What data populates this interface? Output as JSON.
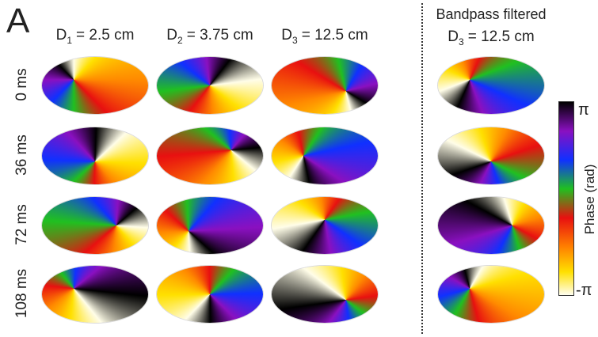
{
  "panel_label": "A",
  "bandpass_header": "Bandpass filtered",
  "columns": [
    {
      "symbol": "D",
      "subscript": "1",
      "value": "= 2.5 cm"
    },
    {
      "symbol": "D",
      "subscript": "2",
      "value": "= 3.75 cm"
    },
    {
      "symbol": "D",
      "subscript": "3",
      "value": "= 12.5 cm"
    },
    {
      "symbol": "D",
      "subscript": "3",
      "value": "= 12.5 cm"
    }
  ],
  "rows": [
    "0 ms",
    "36 ms",
    "72 ms",
    "108 ms"
  ],
  "colorbar": {
    "label": "Phase (rad)",
    "max_label": "π",
    "min_label": "-π"
  }
}
